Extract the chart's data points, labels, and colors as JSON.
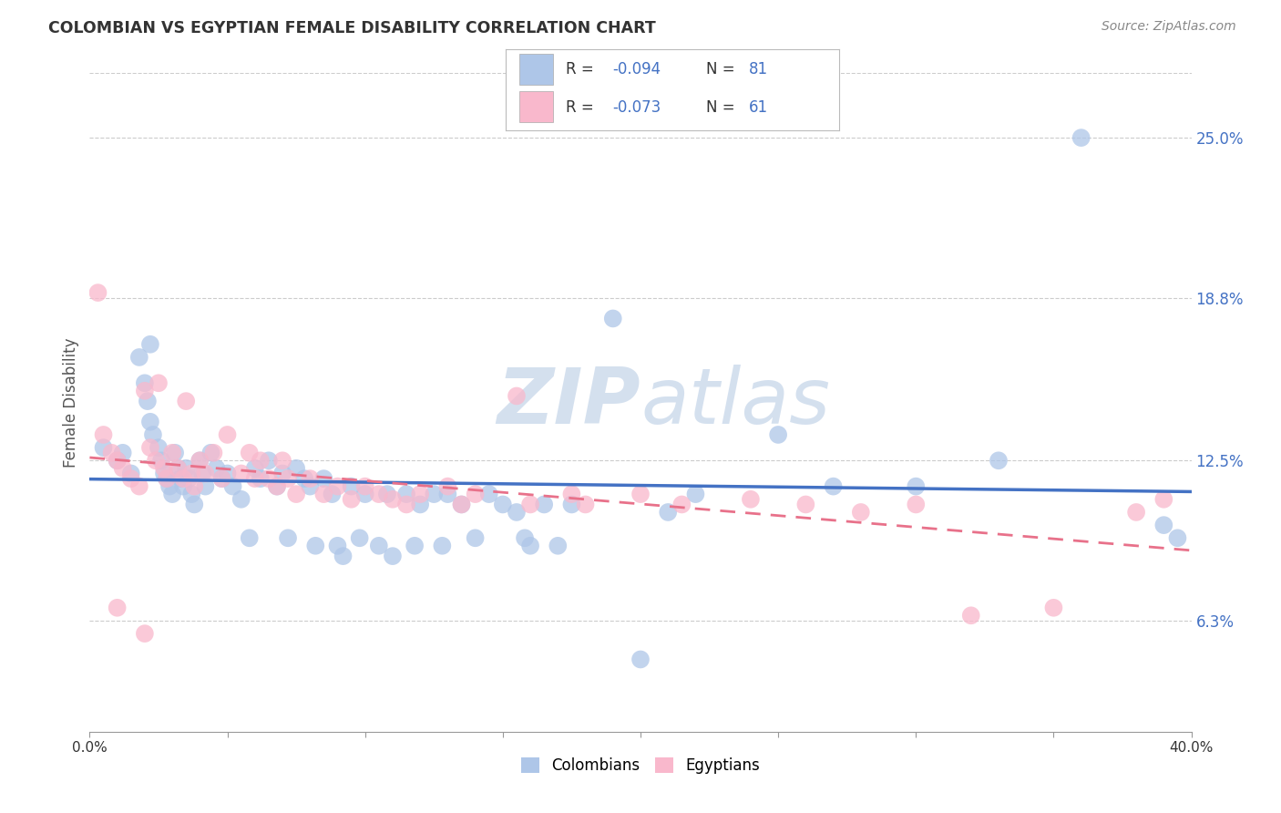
{
  "title": "COLOMBIAN VS EGYPTIAN FEMALE DISABILITY CORRELATION CHART",
  "source": "Source: ZipAtlas.com",
  "ylabel": "Female Disability",
  "ytick_labels": [
    "6.3%",
    "12.5%",
    "18.8%",
    "25.0%"
  ],
  "ytick_values": [
    0.063,
    0.125,
    0.188,
    0.25
  ],
  "xtick_left_label": "0.0%",
  "xtick_right_label": "40.0%",
  "xlim": [
    0.0,
    0.4
  ],
  "ylim": [
    0.02,
    0.275
  ],
  "legend_colombians": "Colombians",
  "legend_egyptians": "Egyptians",
  "R_colombians": -0.094,
  "N_colombians": 81,
  "R_egyptians": -0.073,
  "N_egyptians": 61,
  "color_colombian": "#aec6e8",
  "color_egyptian": "#f9b8cc",
  "color_line_colombian": "#4472c4",
  "color_line_egyptian": "#e8718a",
  "background_color": "#ffffff",
  "watermark_color": "#d0dded",
  "colombian_x": [
    0.005,
    0.01,
    0.012,
    0.015,
    0.018,
    0.02,
    0.021,
    0.022,
    0.022,
    0.023,
    0.025,
    0.026,
    0.027,
    0.028,
    0.029,
    0.03,
    0.031,
    0.032,
    0.033,
    0.034,
    0.035,
    0.036,
    0.037,
    0.038,
    0.04,
    0.041,
    0.042,
    0.044,
    0.046,
    0.048,
    0.05,
    0.052,
    0.055,
    0.058,
    0.06,
    0.062,
    0.065,
    0.068,
    0.07,
    0.072,
    0.075,
    0.078,
    0.08,
    0.082,
    0.085,
    0.088,
    0.09,
    0.092,
    0.095,
    0.098,
    0.1,
    0.105,
    0.108,
    0.11,
    0.115,
    0.118,
    0.12,
    0.125,
    0.128,
    0.13,
    0.135,
    0.14,
    0.145,
    0.15,
    0.155,
    0.158,
    0.16,
    0.165,
    0.17,
    0.175,
    0.19,
    0.2,
    0.21,
    0.22,
    0.25,
    0.27,
    0.3,
    0.33,
    0.36,
    0.39,
    0.395
  ],
  "colombian_y": [
    0.13,
    0.125,
    0.128,
    0.12,
    0.165,
    0.155,
    0.148,
    0.14,
    0.17,
    0.135,
    0.13,
    0.125,
    0.12,
    0.118,
    0.115,
    0.112,
    0.128,
    0.122,
    0.118,
    0.115,
    0.122,
    0.118,
    0.112,
    0.108,
    0.125,
    0.12,
    0.115,
    0.128,
    0.122,
    0.118,
    0.12,
    0.115,
    0.11,
    0.095,
    0.122,
    0.118,
    0.125,
    0.115,
    0.12,
    0.095,
    0.122,
    0.118,
    0.115,
    0.092,
    0.118,
    0.112,
    0.092,
    0.088,
    0.115,
    0.095,
    0.112,
    0.092,
    0.112,
    0.088,
    0.112,
    0.092,
    0.108,
    0.112,
    0.092,
    0.112,
    0.108,
    0.095,
    0.112,
    0.108,
    0.105,
    0.095,
    0.092,
    0.108,
    0.092,
    0.108,
    0.18,
    0.048,
    0.105,
    0.112,
    0.135,
    0.115,
    0.115,
    0.125,
    0.25,
    0.1,
    0.095
  ],
  "egyptian_x": [
    0.003,
    0.005,
    0.008,
    0.01,
    0.012,
    0.015,
    0.018,
    0.02,
    0.022,
    0.024,
    0.025,
    0.027,
    0.028,
    0.03,
    0.032,
    0.034,
    0.035,
    0.037,
    0.038,
    0.04,
    0.042,
    0.045,
    0.048,
    0.05,
    0.055,
    0.058,
    0.06,
    0.062,
    0.065,
    0.068,
    0.07,
    0.072,
    0.075,
    0.08,
    0.085,
    0.09,
    0.095,
    0.1,
    0.105,
    0.11,
    0.115,
    0.12,
    0.13,
    0.135,
    0.14,
    0.155,
    0.16,
    0.175,
    0.18,
    0.2,
    0.215,
    0.24,
    0.26,
    0.28,
    0.3,
    0.32,
    0.35,
    0.38,
    0.39,
    0.01,
    0.02
  ],
  "egyptian_y": [
    0.19,
    0.135,
    0.128,
    0.125,
    0.122,
    0.118,
    0.115,
    0.152,
    0.13,
    0.125,
    0.155,
    0.122,
    0.118,
    0.128,
    0.122,
    0.118,
    0.148,
    0.12,
    0.115,
    0.125,
    0.12,
    0.128,
    0.118,
    0.135,
    0.12,
    0.128,
    0.118,
    0.125,
    0.118,
    0.115,
    0.125,
    0.118,
    0.112,
    0.118,
    0.112,
    0.115,
    0.11,
    0.115,
    0.112,
    0.11,
    0.108,
    0.112,
    0.115,
    0.108,
    0.112,
    0.15,
    0.108,
    0.112,
    0.108,
    0.112,
    0.108,
    0.11,
    0.108,
    0.105,
    0.108,
    0.065,
    0.068,
    0.105,
    0.11,
    0.068,
    0.058
  ]
}
